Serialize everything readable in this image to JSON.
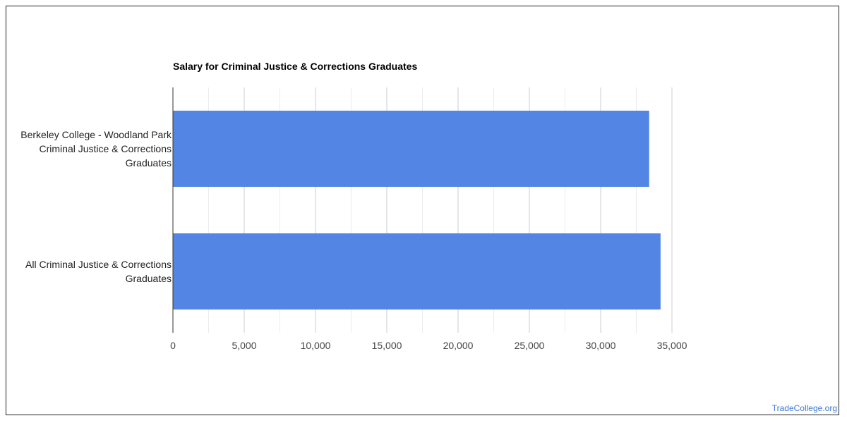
{
  "chart_data": {
    "type": "bar",
    "orientation": "horizontal",
    "title": "Salary for Criminal Justice & Corrections Graduates",
    "categories": [
      [
        "Berkeley College - Woodland Park",
        "Criminal Justice & Corrections",
        "Graduates"
      ],
      [
        "All Criminal Justice & Corrections",
        "Graduates"
      ]
    ],
    "values": [
      33400,
      34200
    ],
    "xlim": [
      0,
      35000
    ],
    "xticks": [
      0,
      5000,
      10000,
      15000,
      20000,
      25000,
      30000,
      35000
    ],
    "xtick_labels": [
      "0",
      "5,000",
      "10,000",
      "15,000",
      "20,000",
      "25,000",
      "30,000",
      "35,000"
    ],
    "bar_color": "#5386e4",
    "grid": true,
    "legend": "none"
  },
  "footer": {
    "credit": "TradeCollege.org"
  }
}
